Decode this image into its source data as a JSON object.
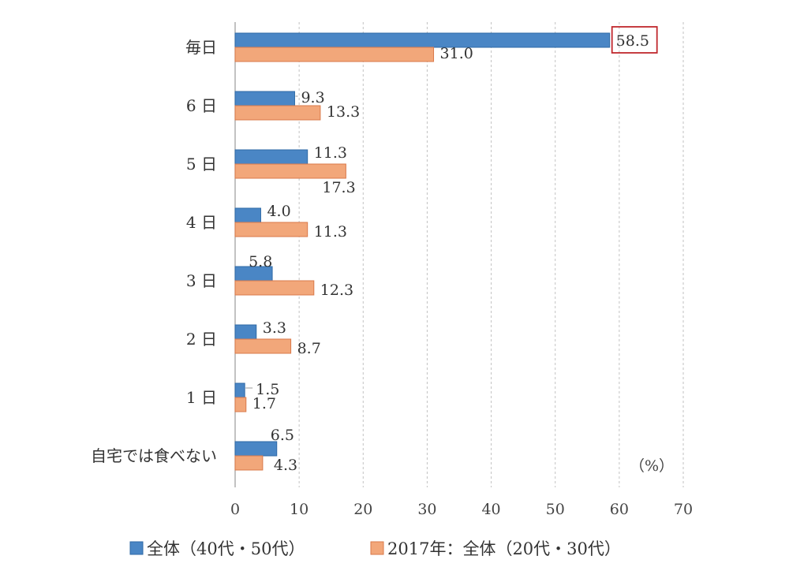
{
  "chart_data": {
    "type": "bar",
    "orientation": "horizontal",
    "categories": [
      "毎日",
      "6 日",
      "5 日",
      "4 日",
      "3 日",
      "2 日",
      "1 日",
      "自宅では食べない"
    ],
    "series": [
      {
        "name": "全体（40代・50代）",
        "color": "#4a86c5",
        "values": [
          58.5,
          9.3,
          11.3,
          4.0,
          5.8,
          3.3,
          1.5,
          6.5
        ]
      },
      {
        "name": "2017年：全体（20代・30代）",
        "color": "#f2a77a",
        "values": [
          31.0,
          13.3,
          17.3,
          11.3,
          12.3,
          8.7,
          1.7,
          4.3
        ]
      }
    ],
    "value_labels": [
      [
        "58.5",
        "9.3",
        "11.3",
        "4.0",
        "5.8",
        "3.3",
        "1.5",
        "6.5"
      ],
      [
        "31.0",
        "13.3",
        "17.3",
        "11.3",
        "12.3",
        "8.7",
        "1.7",
        "4.3"
      ]
    ],
    "xlim": [
      0,
      70
    ],
    "xticks": [
      "0",
      "10",
      "20",
      "30",
      "40",
      "50",
      "60",
      "70"
    ],
    "unit_label": "（%）",
    "grid": "vertical dashed",
    "legend_position": "bottom",
    "highlight": {
      "series": 0,
      "category": 0,
      "color": "#c0282e"
    }
  }
}
